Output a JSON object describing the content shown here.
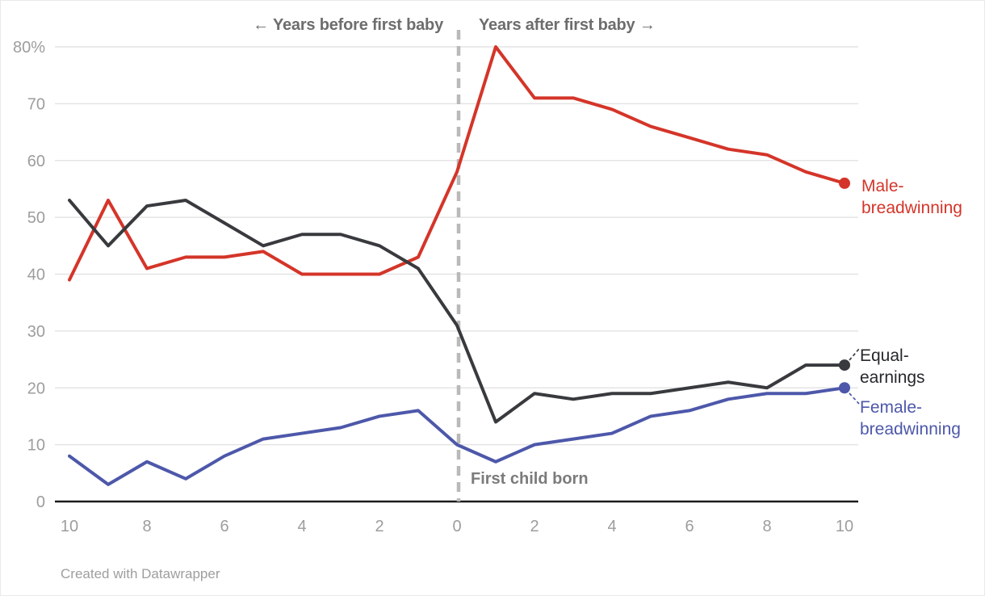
{
  "header": {
    "before": "← Years before first baby",
    "after": "Years after first baby →"
  },
  "annotation": {
    "first_child_born": "First child born"
  },
  "footer": {
    "credit": "Created with Datawrapper"
  },
  "series_labels": {
    "male": {
      "line1": "Male-",
      "line2": "breadwinning"
    },
    "equal": {
      "line1": "Equal-",
      "line2": "earnings"
    },
    "female": {
      "line1": "Female-",
      "line2": "breadwinning"
    }
  },
  "colors": {
    "male_red": "#d43529",
    "equal_black": "#383a3e",
    "female_blue": "#4d58aa",
    "gridline": "#e4e4e4",
    "axis_line": "#1a1a1a",
    "dashed_divider": "#b9b9b9",
    "tick_label": "#9d9d9d"
  },
  "chart_data": {
    "type": "line",
    "title": "",
    "xlabel_before": "← Years before first baby",
    "xlabel_after": "Years after first baby →",
    "ylabel": "",
    "ylim": [
      0,
      80
    ],
    "grid": "horizontal",
    "legend_position": "right-of-line-endpoints",
    "x_years_relative_to_first_baby": [
      -10,
      -9,
      -8,
      -7,
      -6,
      -5,
      -4,
      -3,
      -2,
      -1,
      0,
      1,
      2,
      3,
      4,
      5,
      6,
      7,
      8,
      9,
      10
    ],
    "x_tick_years": [
      -10,
      -8,
      -6,
      -4,
      -2,
      0,
      2,
      4,
      6,
      8,
      10
    ],
    "x_tick_labels": [
      "10",
      "8",
      "6",
      "4",
      "2",
      "0",
      "2",
      "4",
      "6",
      "8",
      "10"
    ],
    "y_ticks": [
      {
        "value": 80,
        "label": "80%"
      },
      {
        "value": 70,
        "label": "70"
      },
      {
        "value": 60,
        "label": "60"
      },
      {
        "value": 50,
        "label": "50"
      },
      {
        "value": 40,
        "label": "40"
      },
      {
        "value": 30,
        "label": "30"
      },
      {
        "value": 20,
        "label": "20"
      },
      {
        "value": 10,
        "label": "10"
      },
      {
        "value": 0,
        "label": "0"
      }
    ],
    "event_marker": {
      "x": 0,
      "label": "First child born"
    },
    "series": [
      {
        "name": "Male-breadwinning",
        "color": "#d43529",
        "values": [
          39,
          53,
          41,
          43,
          43,
          44,
          40,
          40,
          40,
          43,
          58,
          80,
          71,
          71,
          69,
          66,
          64,
          62,
          61,
          58,
          56
        ]
      },
      {
        "name": "Equal-earnings",
        "color": "#383a3e",
        "values": [
          53,
          45,
          52,
          53,
          49,
          45,
          47,
          47,
          45,
          41,
          31,
          14,
          19,
          18,
          19,
          19,
          20,
          21,
          20,
          24,
          24
        ]
      },
      {
        "name": "Female-breadwinning",
        "color": "#4d58aa",
        "values": [
          8,
          3,
          7,
          4,
          8,
          11,
          12,
          13,
          15,
          16,
          10,
          7,
          10,
          11,
          12,
          15,
          16,
          18,
          19,
          19,
          20
        ]
      }
    ]
  }
}
